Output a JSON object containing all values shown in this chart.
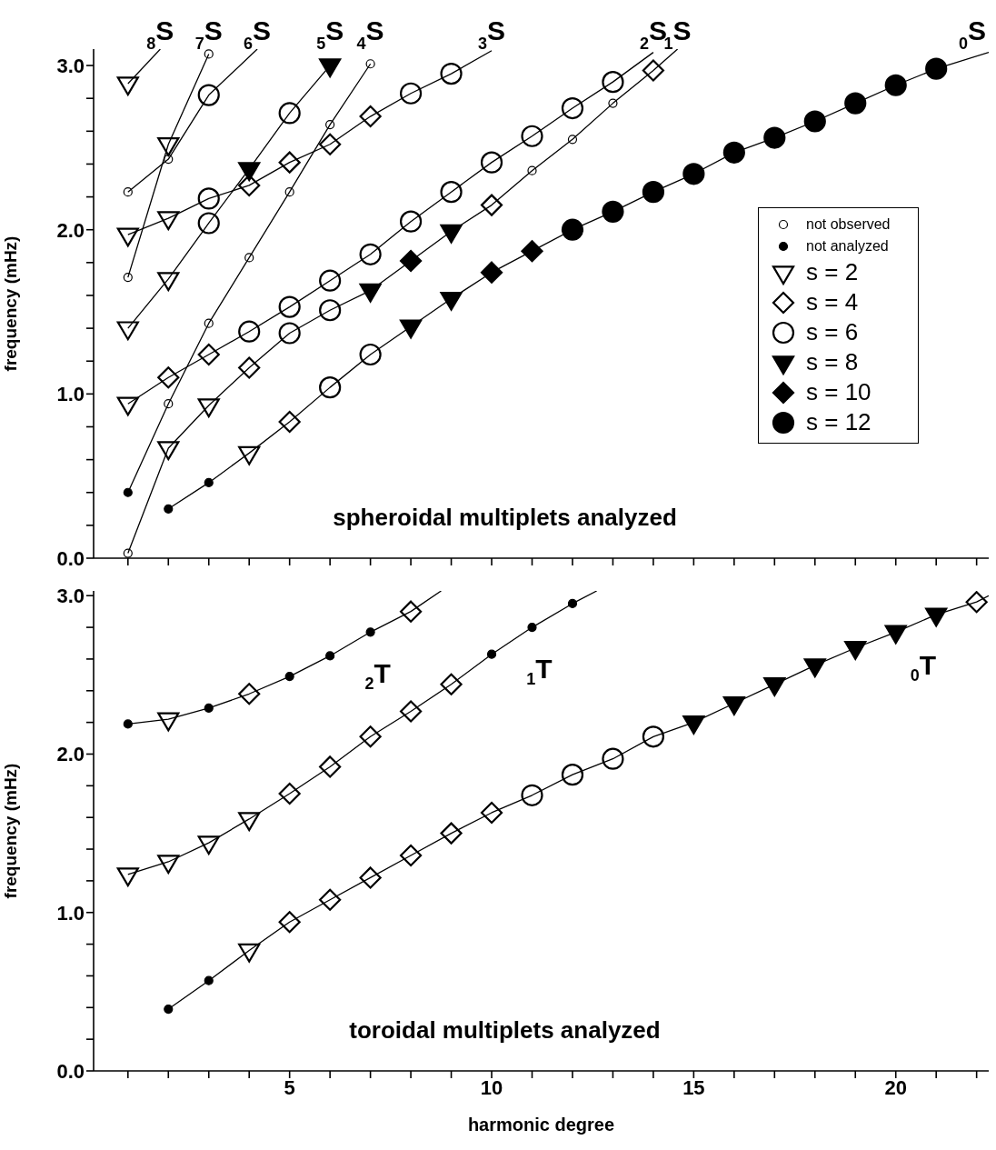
{
  "chart_data": [
    {
      "type": "line",
      "title": "spheroidal multiplets analyzed",
      "ylabel": "frequency (mHz)",
      "tick_labels": "y",
      "legend": "right",
      "xlim": [
        0.15,
        22.3
      ],
      "ylim": [
        0,
        3.1
      ],
      "xticks": [
        {
          "value": 1,
          "label": null
        },
        {
          "value": 2,
          "label": null
        },
        {
          "value": 3,
          "label": null
        },
        {
          "value": 4,
          "label": null
        },
        5,
        {
          "value": 6,
          "label": null
        },
        {
          "value": 7,
          "label": null
        },
        {
          "value": 8,
          "label": null
        },
        {
          "value": 9,
          "label": null
        },
        10,
        {
          "value": 11,
          "label": null
        },
        {
          "value": 12,
          "label": null
        },
        {
          "value": 13,
          "label": null
        },
        {
          "value": 14,
          "label": null
        },
        15,
        {
          "value": 16,
          "label": null
        },
        {
          "value": 17,
          "label": null
        },
        {
          "value": 18,
          "label": null
        },
        {
          "value": 19,
          "label": null
        },
        20,
        {
          "value": 21,
          "label": null
        },
        {
          "value": 22,
          "label": null
        }
      ],
      "yticks": [
        {
          "value": 0,
          "label": "0.0"
        },
        {
          "value": 0.2,
          "label": null
        },
        {
          "value": 0.4,
          "label": null
        },
        {
          "value": 0.6,
          "label": null
        },
        {
          "value": 0.8,
          "label": null
        },
        {
          "value": 1,
          "label": "1.0"
        },
        {
          "value": 1.2,
          "label": null
        },
        {
          "value": 1.4,
          "label": null
        },
        {
          "value": 1.6,
          "label": null
        },
        {
          "value": 1.8,
          "label": null
        },
        {
          "value": 2,
          "label": "2.0"
        },
        {
          "value": 2.2,
          "label": null
        },
        {
          "value": 2.4,
          "label": null
        },
        {
          "value": 2.6,
          "label": null
        },
        {
          "value": 2.8,
          "label": null
        },
        {
          "value": 3,
          "label": "3.0"
        }
      ],
      "series": [
        {
          "name": "$_{8}$S",
          "color": "#000000",
          "marker": "none",
          "x": [
            1,
            1.8
          ],
          "values": [
            2.89,
            3.1
          ]
        },
        {
          "name": "$_{7}$S",
          "color": "#000000",
          "marker": "none",
          "x": [
            1,
            2,
            3
          ],
          "values": [
            1.71,
            2.52,
            3.07
          ]
        },
        {
          "name": "$_{6}$S",
          "color": "#000000",
          "marker": "none",
          "x": [
            1,
            2,
            3,
            4.2
          ],
          "values": [
            2.23,
            2.43,
            2.82,
            3.1
          ]
        },
        {
          "name": "$_{5}$S",
          "color": "#000000",
          "marker": "none",
          "x": [
            1,
            2,
            3,
            4,
            5,
            6
          ],
          "values": [
            1.4,
            1.7,
            2.04,
            2.37,
            2.71,
            3.0
          ]
        },
        {
          "name": "$_{4}$S",
          "color": "#000000",
          "marker": "none",
          "x": [
            1,
            2,
            3,
            4,
            5,
            6,
            7
          ],
          "values": [
            0.4,
            0.94,
            1.43,
            1.83,
            2.23,
            2.64,
            3.01
          ]
        },
        {
          "name": "$_{3}$S",
          "color": "#000000",
          "marker": "none",
          "x": [
            1,
            2,
            3,
            4,
            5,
            6,
            7,
            8,
            9,
            10
          ],
          "values": [
            1.97,
            2.07,
            2.19,
            2.27,
            2.41,
            2.52,
            2.69,
            2.83,
            2.95,
            3.09
          ]
        },
        {
          "name": "$_{2}$S",
          "color": "#000000",
          "marker": "none",
          "x": [
            1,
            2,
            3,
            4,
            5,
            6,
            7,
            8,
            9,
            10,
            11,
            12,
            13,
            14
          ],
          "values": [
            0.94,
            1.1,
            1.24,
            1.38,
            1.53,
            1.69,
            1.85,
            2.05,
            2.23,
            2.41,
            2.57,
            2.74,
            2.9,
            3.08
          ]
        },
        {
          "name": "$_{1}$S",
          "color": "#000000",
          "marker": "none",
          "x": [
            1,
            2,
            3,
            4,
            5,
            6,
            7,
            8,
            9,
            10,
            11,
            12,
            13,
            14,
            14.6
          ],
          "values": [
            0.03,
            0.67,
            0.93,
            1.16,
            1.37,
            1.51,
            1.63,
            1.81,
            1.99,
            2.15,
            2.36,
            2.55,
            2.77,
            2.97,
            3.1
          ]
        },
        {
          "name": "$_{0}$S",
          "color": "#000000",
          "marker": "none",
          "x": [
            2,
            3,
            4,
            5,
            6,
            7,
            8,
            9,
            10,
            11,
            12,
            13,
            14,
            15,
            16,
            17,
            18,
            19,
            20,
            21,
            22.3
          ],
          "values": [
            0.3,
            0.46,
            0.64,
            0.83,
            1.04,
            1.24,
            1.41,
            1.58,
            1.74,
            1.87,
            2.0,
            2.11,
            2.23,
            2.34,
            2.47,
            2.56,
            2.66,
            2.77,
            2.88,
            2.98,
            3.08
          ]
        },
        {
          "type": "scatter",
          "name": "not observed",
          "color": "#ffffff",
          "marker": "circle",
          "x": [
            1,
            2,
            3,
            4,
            5,
            6,
            7,
            1,
            3,
            1,
            2,
            11,
            12,
            13
          ],
          "values": [
            0.03,
            0.94,
            1.43,
            1.83,
            2.23,
            2.64,
            3.01,
            1.71,
            3.07,
            2.23,
            2.43,
            2.36,
            2.55,
            2.77
          ]
        },
        {
          "type": "scatter",
          "name": "not analyzed",
          "color": "#000000",
          "marker": "circle",
          "x": [
            1,
            2,
            3
          ],
          "values": [
            0.4,
            0.3,
            0.46
          ]
        },
        {
          "type": "scatter",
          "name": "s = 2",
          "color": "#ffffff",
          "marker": "triangle",
          "x": [
            1,
            1,
            2,
            1,
            2,
            1,
            2,
            3,
            4,
            2
          ],
          "values": [
            2.89,
            1.97,
            2.07,
            1.4,
            1.7,
            0.94,
            0.67,
            0.93,
            0.64,
            2.52
          ]
        },
        {
          "type": "scatter",
          "name": "s = 4",
          "color": "#ffffff",
          "marker": "diamond",
          "x": [
            2,
            3,
            4,
            5,
            6,
            7,
            4,
            10,
            14,
            5
          ],
          "values": [
            1.1,
            1.24,
            2.27,
            2.41,
            2.52,
            2.69,
            1.16,
            2.15,
            2.97,
            0.83
          ]
        },
        {
          "type": "scatter",
          "name": "s = 6",
          "color": "#ffffff",
          "marker": "circle",
          "x": [
            3,
            8,
            9,
            3,
            3,
            5,
            4,
            5,
            6,
            7,
            8,
            9,
            10,
            11,
            12,
            13,
            5,
            6,
            6,
            7
          ],
          "values": [
            2.19,
            2.83,
            2.95,
            2.82,
            2.04,
            2.71,
            1.38,
            1.53,
            1.69,
            1.85,
            2.05,
            2.23,
            2.41,
            2.57,
            2.74,
            2.9,
            1.37,
            1.51,
            1.04,
            1.24
          ]
        },
        {
          "type": "scatter",
          "name": "s = 8",
          "color": "#000000",
          "marker": "triangle",
          "x": [
            4,
            6,
            7,
            9,
            8,
            9
          ],
          "values": [
            2.37,
            3.0,
            1.63,
            1.99,
            1.41,
            1.58
          ]
        },
        {
          "type": "scatter",
          "name": "s = 10",
          "color": "#000000",
          "marker": "diamond",
          "x": [
            8,
            10,
            11
          ],
          "values": [
            1.81,
            1.74,
            1.87
          ]
        },
        {
          "type": "scatter",
          "name": "s = 12",
          "color": "#000000",
          "marker": "circle",
          "x": [
            12,
            13,
            14,
            15,
            16,
            17,
            18,
            19,
            20,
            21
          ],
          "values": [
            2.0,
            2.11,
            2.23,
            2.34,
            2.47,
            2.56,
            2.66,
            2.77,
            2.88,
            2.98
          ]
        }
      ]
    },
    {
      "type": "line",
      "title": "toroidal multiplets analyzed",
      "xlabel": "harmonic degree",
      "ylabel": "frequency (mHz)",
      "xlim": [
        0.15,
        22.3
      ],
      "ylim": [
        0,
        3.03
      ],
      "xticks": [
        {
          "value": 1,
          "label": null
        },
        {
          "value": 2,
          "label": null
        },
        {
          "value": 3,
          "label": null
        },
        {
          "value": 4,
          "label": null
        },
        5,
        {
          "value": 6,
          "label": null
        },
        {
          "value": 7,
          "label": null
        },
        {
          "value": 8,
          "label": null
        },
        {
          "value": 9,
          "label": null
        },
        10,
        {
          "value": 11,
          "label": null
        },
        {
          "value": 12,
          "label": null
        },
        {
          "value": 13,
          "label": null
        },
        {
          "value": 14,
          "label": null
        },
        15,
        {
          "value": 16,
          "label": null
        },
        {
          "value": 17,
          "label": null
        },
        {
          "value": 18,
          "label": null
        },
        {
          "value": 19,
          "label": null
        },
        20,
        {
          "value": 21,
          "label": null
        },
        {
          "value": 22,
          "label": null
        }
      ],
      "yticks": [
        {
          "value": 0,
          "label": "0.0"
        },
        {
          "value": 0.2,
          "label": null
        },
        {
          "value": 0.4,
          "label": null
        },
        {
          "value": 0.6,
          "label": null
        },
        {
          "value": 0.8,
          "label": null
        },
        {
          "value": 1,
          "label": "1.0"
        },
        {
          "value": 1.2,
          "label": null
        },
        {
          "value": 1.4,
          "label": null
        },
        {
          "value": 1.6,
          "label": null
        },
        {
          "value": 1.8,
          "label": null
        },
        {
          "value": 2,
          "label": "2.0"
        },
        {
          "value": 2.2,
          "label": null
        },
        {
          "value": 2.4,
          "label": null
        },
        {
          "value": 2.6,
          "label": null
        },
        {
          "value": 2.8,
          "label": null
        },
        {
          "value": 3,
          "label": "3.0"
        }
      ],
      "annotations": [
        {
          "text": "$_{2}$T",
          "x": 7,
          "y": 2.77
        },
        {
          "text": "$_{1}$T",
          "x": 11,
          "y": 2.8
        },
        {
          "text": "$_{0}$T",
          "x": 20.5,
          "y": 2.825
        }
      ],
      "series": [
        {
          "color": "#000000",
          "marker": "none",
          "x": [
            1,
            2,
            3,
            4,
            5,
            6,
            7,
            8,
            8.75
          ],
          "values": [
            2.19,
            2.22,
            2.29,
            2.38,
            2.49,
            2.62,
            2.77,
            2.9,
            3.03
          ]
        },
        {
          "color": "#000000",
          "marker": "none",
          "x": [
            1,
            2,
            3,
            4,
            5,
            6,
            7,
            8,
            9,
            10,
            11,
            12,
            12.6
          ],
          "values": [
            1.24,
            1.32,
            1.44,
            1.59,
            1.75,
            1.92,
            2.11,
            2.27,
            2.44,
            2.63,
            2.8,
            2.95,
            3.03
          ]
        },
        {
          "color": "#000000",
          "marker": "none",
          "x": [
            2,
            3,
            4,
            5,
            6,
            7,
            8,
            9,
            10,
            11,
            12,
            13,
            14,
            15,
            16,
            17,
            18,
            19,
            20,
            21,
            22,
            22.3
          ],
          "values": [
            0.39,
            0.57,
            0.76,
            0.94,
            1.08,
            1.22,
            1.36,
            1.5,
            1.63,
            1.74,
            1.87,
            1.97,
            2.11,
            2.2,
            2.32,
            2.44,
            2.56,
            2.67,
            2.77,
            2.88,
            2.96,
            3.0
          ]
        },
        {
          "type": "scatter",
          "color": "#000000",
          "marker": "circle",
          "x": [
            1,
            3,
            5,
            6,
            7,
            10,
            11,
            12,
            2,
            3
          ],
          "values": [
            2.19,
            2.29,
            2.49,
            2.62,
            2.77,
            2.63,
            2.8,
            2.95,
            0.39,
            0.57
          ]
        },
        {
          "type": "scatter",
          "color": "#ffffff",
          "marker": "triangle",
          "x": [
            2,
            1,
            2,
            3,
            4,
            4
          ],
          "values": [
            2.22,
            1.24,
            1.32,
            1.44,
            1.59,
            0.76
          ]
        },
        {
          "type": "scatter",
          "color": "#ffffff",
          "marker": "diamond",
          "x": [
            4,
            8,
            5,
            6,
            7,
            8,
            9,
            5,
            6,
            7,
            8,
            9,
            10,
            22
          ],
          "values": [
            2.38,
            2.9,
            1.75,
            1.92,
            2.11,
            2.27,
            2.44,
            0.94,
            1.08,
            1.22,
            1.36,
            1.5,
            1.63,
            2.96
          ]
        },
        {
          "type": "scatter",
          "color": "#ffffff",
          "marker": "circle",
          "x": [
            11,
            12,
            13,
            14
          ],
          "values": [
            1.74,
            1.87,
            1.97,
            2.11
          ]
        },
        {
          "type": "scatter",
          "color": "#000000",
          "marker": "triangle",
          "x": [
            15,
            16,
            17,
            18,
            19,
            20,
            21
          ],
          "values": [
            2.2,
            2.32,
            2.44,
            2.56,
            2.67,
            2.77,
            2.88
          ]
        }
      ]
    }
  ]
}
